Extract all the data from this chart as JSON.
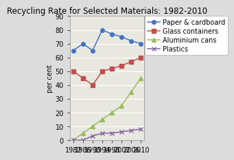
{
  "title": "Recycling Rate for Selected Materials: 1982-2010",
  "ylabel": "per cent",
  "years": [
    1982,
    1986,
    1990,
    1994,
    1998,
    2002,
    2006,
    2010
  ],
  "series": [
    {
      "label": "Paper & cardboard",
      "color": "#4472C4",
      "marker": "o",
      "values": [
        65,
        70,
        65,
        80,
        77,
        75,
        72,
        70
      ]
    },
    {
      "label": "Glass containers",
      "color": "#C0504D",
      "marker": "s",
      "values": [
        50,
        45,
        40,
        50,
        52,
        54,
        57,
        60
      ]
    },
    {
      "label": "Aluminium cans",
      "color": "#9BBB59",
      "marker": "^",
      "values": [
        0,
        5,
        10,
        15,
        20,
        25,
        35,
        45
      ]
    },
    {
      "label": "Plastics",
      "color": "#8064A2",
      "marker": "x",
      "values": [
        0,
        0,
        3,
        5,
        5,
        6,
        7,
        8
      ]
    }
  ],
  "ylim": [
    0,
    90
  ],
  "yticks": [
    0,
    10,
    20,
    30,
    40,
    50,
    60,
    70,
    80,
    90
  ],
  "background_color": "#DCDCDC",
  "plot_bg_color": "#E8E8E0",
  "grid_color": "#FFFFFF",
  "title_fontsize": 8.5,
  "axis_fontsize": 7,
  "legend_fontsize": 7,
  "tick_fontsize": 7
}
